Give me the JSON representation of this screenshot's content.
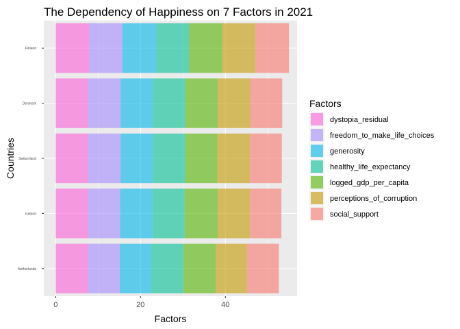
{
  "chart_data": {
    "type": "bar",
    "orientation": "horizontal",
    "stacked": true,
    "title": "The Dependency of Happiness on 7 Factors in 2021",
    "xlabel": "Factors",
    "ylabel": "Countries",
    "xlim": [
      -2.8,
      56.9
    ],
    "xticks": [
      0,
      20,
      40
    ],
    "grid": true,
    "legend_position": "right",
    "legend_title": "Factors",
    "categories": [
      "Finland",
      "Denmark",
      "Switzerland",
      "Iceland",
      "Netherlands"
    ],
    "series": [
      {
        "name": "social_support",
        "color": "#F8766D",
        "values": [
          7.9,
          7.5,
          7.5,
          7.4,
          7.5
        ]
      },
      {
        "name": "perceptions_of_corruption",
        "color": "#C49A00",
        "values": [
          7.8,
          7.7,
          7.7,
          7.6,
          7.4
        ]
      },
      {
        "name": "logged_gdp_per_capita",
        "color": "#53B400",
        "values": [
          7.9,
          7.7,
          7.6,
          7.8,
          7.6
        ]
      },
      {
        "name": "healthy_life_expectancy",
        "color": "#00C094",
        "values": [
          7.8,
          7.6,
          7.6,
          7.6,
          7.6
        ]
      },
      {
        "name": "generosity",
        "color": "#00B6EB",
        "values": [
          7.9,
          7.6,
          7.6,
          7.6,
          7.4
        ]
      },
      {
        "name": "freedom_to_make_life_choices",
        "color": "#A58AFF",
        "values": [
          7.8,
          7.7,
          7.7,
          7.6,
          7.5
        ]
      },
      {
        "name": "dystopia_residual",
        "color": "#FB61D7",
        "values": [
          7.9,
          7.6,
          7.6,
          7.6,
          7.6
        ]
      }
    ]
  }
}
